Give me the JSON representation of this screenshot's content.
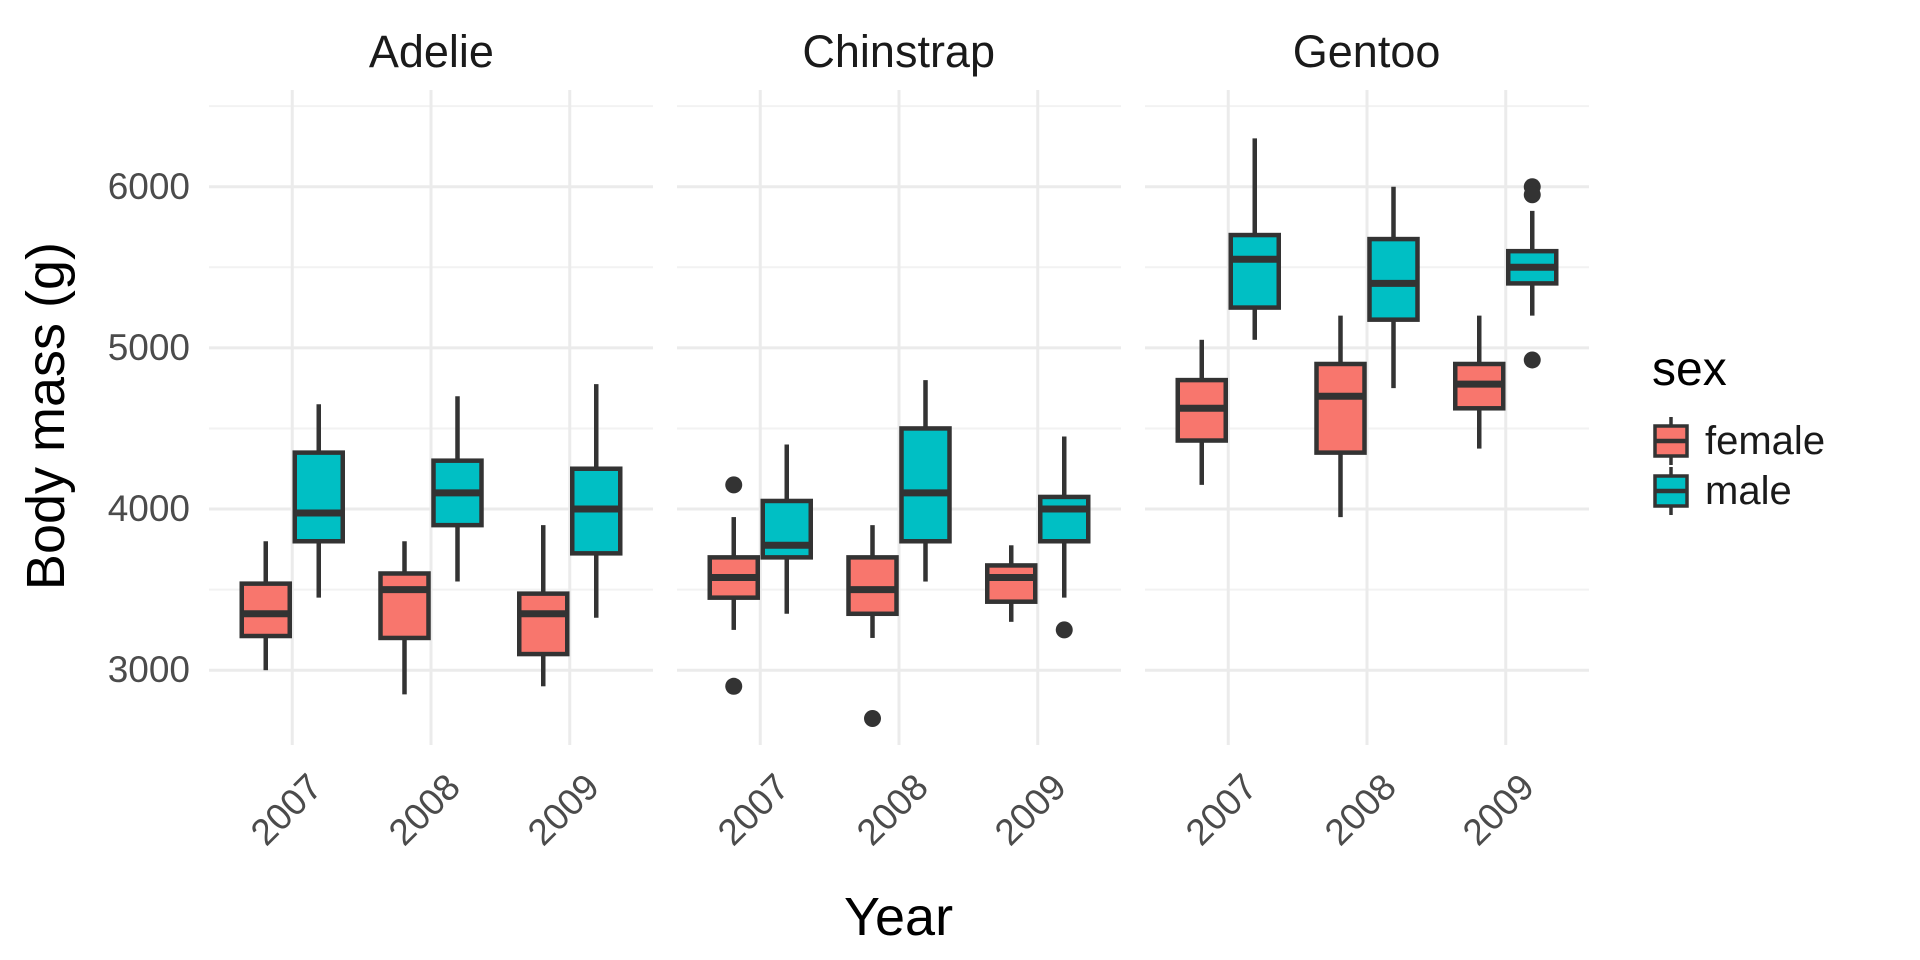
{
  "chart_data": {
    "type": "boxplot",
    "xlabel": "Year",
    "ylabel": "Body mass (g)",
    "categories": [
      "2007",
      "2008",
      "2009"
    ],
    "y_axis": {
      "major_ticks": [
        3000,
        4000,
        5000,
        6000
      ],
      "minor_ticks": [
        3500,
        4500,
        5500,
        6500
      ],
      "range": [
        2550,
        6600
      ],
      "grid": true
    },
    "legend": {
      "title": "sex",
      "position": "right",
      "entries": [
        {
          "label": "female",
          "color": "#F8766D"
        },
        {
          "label": "male",
          "color": "#00BFC4"
        }
      ]
    },
    "style": {
      "box_border": "#333333",
      "outlier_color": "#333333",
      "grid_major": "#EBEBEB",
      "grid_minor": "#F2F2F2",
      "tick_label_color": "#4B4B4B",
      "background": "#FFFFFF"
    },
    "facets": [
      {
        "species": "Adelie",
        "boxes": [
          {
            "year": "2007",
            "sex": "female",
            "whisker_low": 3000,
            "q1": 3212,
            "median": 3350,
            "q3": 3537,
            "whisker_high": 3800,
            "outliers": []
          },
          {
            "year": "2007",
            "sex": "male",
            "whisker_low": 3450,
            "q1": 3800,
            "median": 3975,
            "q3": 4350,
            "whisker_high": 4650,
            "outliers": []
          },
          {
            "year": "2008",
            "sex": "female",
            "whisker_low": 2850,
            "q1": 3200,
            "median": 3500,
            "q3": 3600,
            "whisker_high": 3800,
            "outliers": []
          },
          {
            "year": "2008",
            "sex": "male",
            "whisker_low": 3550,
            "q1": 3900,
            "median": 4100,
            "q3": 4300,
            "whisker_high": 4700,
            "outliers": []
          },
          {
            "year": "2009",
            "sex": "female",
            "whisker_low": 2900,
            "q1": 3100,
            "median": 3350,
            "q3": 3475,
            "whisker_high": 3900,
            "outliers": []
          },
          {
            "year": "2009",
            "sex": "male",
            "whisker_low": 3325,
            "q1": 3725,
            "median": 4000,
            "q3": 4250,
            "whisker_high": 4775,
            "outliers": []
          }
        ]
      },
      {
        "species": "Chinstrap",
        "boxes": [
          {
            "year": "2007",
            "sex": "female",
            "whisker_low": 3250,
            "q1": 3450,
            "median": 3575,
            "q3": 3700,
            "whisker_high": 3950,
            "outliers": [
              4150,
              2900
            ]
          },
          {
            "year": "2007",
            "sex": "male",
            "whisker_low": 3350,
            "q1": 3700,
            "median": 3775,
            "q3": 4050,
            "whisker_high": 4400,
            "outliers": []
          },
          {
            "year": "2008",
            "sex": "female",
            "whisker_low": 3200,
            "q1": 3350,
            "median": 3500,
            "q3": 3700,
            "whisker_high": 3900,
            "outliers": [
              2700
            ]
          },
          {
            "year": "2008",
            "sex": "male",
            "whisker_low": 3550,
            "q1": 3800,
            "median": 4100,
            "q3": 4500,
            "whisker_high": 4800,
            "outliers": []
          },
          {
            "year": "2009",
            "sex": "female",
            "whisker_low": 3300,
            "q1": 3425,
            "median": 3575,
            "q3": 3650,
            "whisker_high": 3775,
            "outliers": []
          },
          {
            "year": "2009",
            "sex": "male",
            "whisker_low": 3450,
            "q1": 3800,
            "median": 4000,
            "q3": 4075,
            "whisker_high": 4450,
            "outliers": [
              3250
            ]
          }
        ]
      },
      {
        "species": "Gentoo",
        "boxes": [
          {
            "year": "2007",
            "sex": "female",
            "whisker_low": 4150,
            "q1": 4425,
            "median": 4625,
            "q3": 4800,
            "whisker_high": 5050,
            "outliers": []
          },
          {
            "year": "2007",
            "sex": "male",
            "whisker_low": 5050,
            "q1": 5250,
            "median": 5550,
            "q3": 5700,
            "whisker_high": 6300,
            "outliers": []
          },
          {
            "year": "2008",
            "sex": "female",
            "whisker_low": 3950,
            "q1": 4350,
            "median": 4700,
            "q3": 4900,
            "whisker_high": 5200,
            "outliers": []
          },
          {
            "year": "2008",
            "sex": "male",
            "whisker_low": 4750,
            "q1": 5175,
            "median": 5400,
            "q3": 5675,
            "whisker_high": 6000,
            "outliers": []
          },
          {
            "year": "2009",
            "sex": "female",
            "whisker_low": 4375,
            "q1": 4625,
            "median": 4775,
            "q3": 4900,
            "whisker_high": 5200,
            "outliers": []
          },
          {
            "year": "2009",
            "sex": "male",
            "whisker_low": 5200,
            "q1": 5400,
            "median": 5500,
            "q3": 5600,
            "whisker_high": 5850,
            "outliers": [
              6000,
              5950,
              4925
            ]
          }
        ]
      }
    ]
  }
}
